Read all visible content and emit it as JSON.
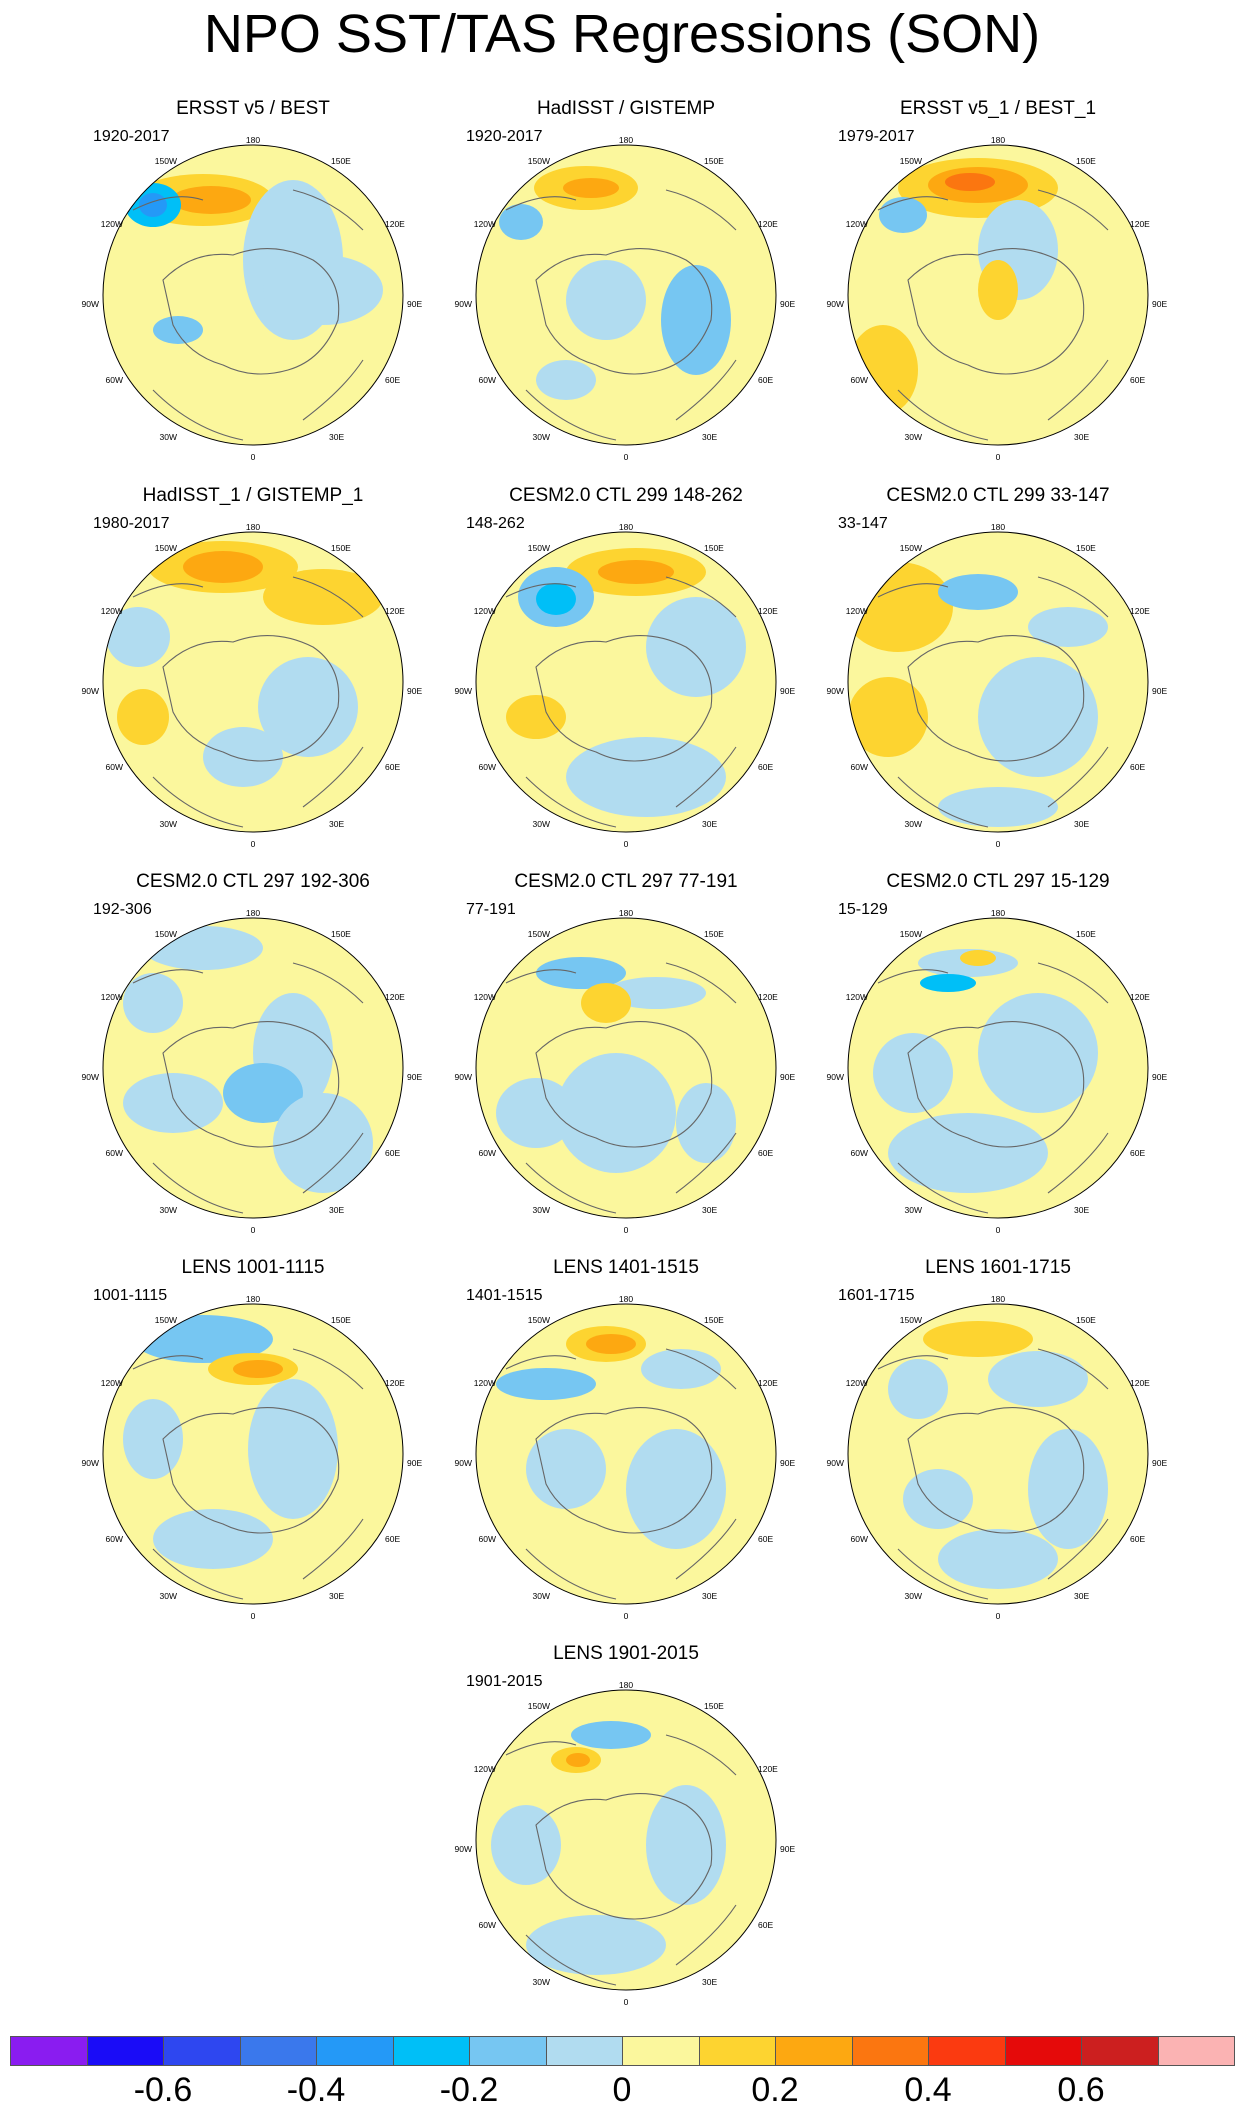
{
  "title": "NPO SST/TAS Regressions (SON)",
  "lon_labels": {
    "top": "180",
    "top_right": "150E",
    "right_upper": "120E",
    "right": "90E",
    "right_lower": "60E",
    "bottom_right": "30E",
    "bottom": "0",
    "bottom_left": "30W",
    "left_lower": "60W",
    "left": "90W",
    "left_upper": "120W",
    "top_left": "150W"
  },
  "panels": [
    {
      "title": "ERSST v5 / BEST",
      "period": "1920-2017"
    },
    {
      "title": "HadISST / GISTEMP",
      "period": "1920-2017"
    },
    {
      "title": "ERSST v5_1 / BEST_1",
      "period": "1979-2017"
    },
    {
      "title": "HadISST_1 / GISTEMP_1",
      "period": "1980-2017"
    },
    {
      "title": "CESM2.0 CTL 299 148-262",
      "period": "148-262"
    },
    {
      "title": "CESM2.0 CTL 299 33-147",
      "period": "33-147"
    },
    {
      "title": "CESM2.0 CTL 297 192-306",
      "period": "192-306"
    },
    {
      "title": "CESM2.0 CTL 297 77-191",
      "period": "77-191"
    },
    {
      "title": "CESM2.0 CTL 297 15-129",
      "period": "15-129"
    },
    {
      "title": "LENS 1001-1115",
      "period": "1001-1115"
    },
    {
      "title": "LENS 1401-1515",
      "period": "1401-1515"
    },
    {
      "title": "LENS 1601-1715",
      "period": "1601-1715"
    },
    {
      "title": "LENS 1901-2015",
      "period": "1901-2015"
    }
  ],
  "colorbar": {
    "colors": [
      "#8a1cf0",
      "#1a0cf7",
      "#2e47f0",
      "#3a78ec",
      "#2499f7",
      "#00bff7",
      "#76c6f2",
      "#b1dcf0",
      "#fbf79d",
      "#fdd430",
      "#fda811",
      "#fb7610",
      "#fb3a10",
      "#e50a0a",
      "#cc1f1f",
      "#fbb3b3"
    ],
    "tick_labels": [
      "-0.6",
      "-0.4",
      "-0.2",
      "0",
      "0.2",
      "0.4",
      "0.6"
    ]
  }
}
